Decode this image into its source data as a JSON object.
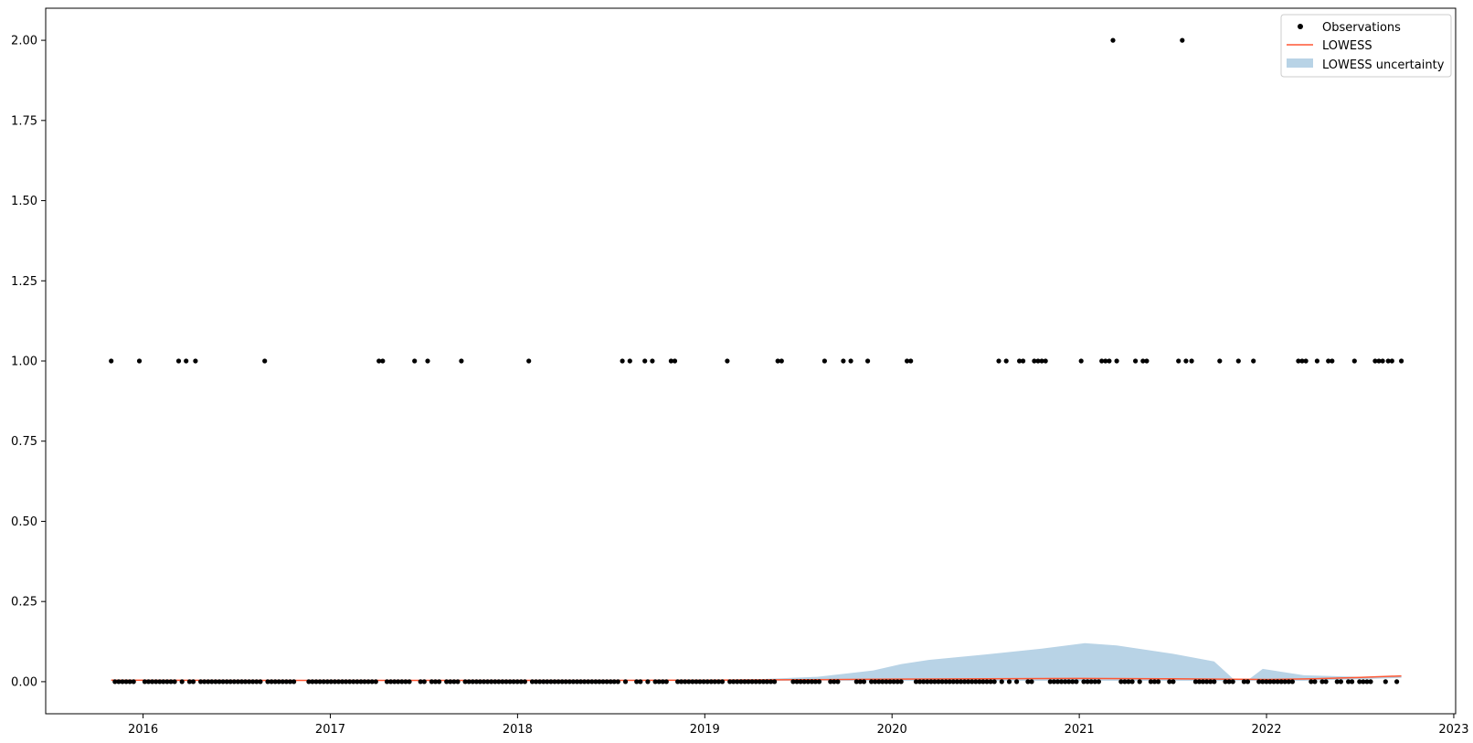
{
  "chart_data": {
    "type": "scatter",
    "title": "",
    "xlabel": "",
    "ylabel": "",
    "xlim": [
      2015.48,
      2023.01
    ],
    "ylim": [
      -0.1,
      2.1
    ],
    "x_ticks": [
      2016,
      2017,
      2018,
      2019,
      2020,
      2021,
      2022,
      2023
    ],
    "x_tick_labels": [
      "2016",
      "2017",
      "2018",
      "2019",
      "2020",
      "2021",
      "2022",
      "2023"
    ],
    "y_ticks": [
      0.0,
      0.25,
      0.5,
      0.75,
      1.0,
      1.25,
      1.5,
      1.75,
      2.0
    ],
    "y_tick_labels": [
      "0.00",
      "0.25",
      "0.50",
      "0.75",
      "1.00",
      "1.25",
      "1.50",
      "1.75",
      "2.00"
    ],
    "grid": false,
    "legend_position": "top-right",
    "legend": {
      "observations": "Observations",
      "lowess": "LOWESS",
      "uncertainty": "LOWESS uncertainty"
    },
    "colors": {
      "observations": "#000000",
      "lowess": "#ff5733",
      "uncertainty": "#b8d3e6"
    },
    "observations_value_1": [
      2015.83,
      2015.98,
      2016.19,
      2016.23,
      2016.28,
      2016.65,
      2017.26,
      2017.28,
      2017.45,
      2017.52,
      2017.7,
      2018.06,
      2018.56,
      2018.6,
      2018.68,
      2018.72,
      2018.82,
      2018.84,
      2019.12,
      2019.39,
      2019.41,
      2019.64,
      2019.74,
      2019.78,
      2019.87,
      2020.08,
      2020.1,
      2020.57,
      2020.61,
      2020.68,
      2020.7,
      2020.76,
      2020.78,
      2020.8,
      2020.82,
      2021.01,
      2021.12,
      2021.14,
      2021.16,
      2021.2,
      2021.3,
      2021.34,
      2021.36,
      2021.53,
      2021.57,
      2021.6,
      2021.75,
      2021.85,
      2021.93,
      2022.17,
      2022.19,
      2022.21,
      2022.27,
      2022.33,
      2022.35,
      2022.47,
      2022.58,
      2022.6,
      2022.62,
      2022.65,
      2022.67,
      2022.72
    ],
    "observations_value_2": [
      2021.18,
      2021.55
    ],
    "observations_value_0_range": [
      2015.85,
      2022.71
    ],
    "observations_value_0_gaps": [
      [
        2016.82,
        2016.87
      ],
      [
        2017.59,
        2017.62
      ],
      [
        2018.58,
        2018.62
      ],
      [
        2019.43,
        2019.46
      ],
      [
        2020.63,
        2020.66
      ],
      [
        2021.44,
        2021.47
      ],
      [
        2021.9,
        2021.92
      ],
      [
        2022.4,
        2022.42
      ]
    ],
    "lowess": {
      "x": [
        2015.83,
        2016.5,
        2017.0,
        2017.5,
        2018.0,
        2018.5,
        2019.0,
        2019.5,
        2020.0,
        2020.5,
        2021.0,
        2021.5,
        2021.75,
        2022.0,
        2022.25,
        2022.5,
        2022.72
      ],
      "y": [
        0.005,
        0.004,
        0.004,
        0.004,
        0.004,
        0.004,
        0.005,
        0.006,
        0.008,
        0.009,
        0.01,
        0.009,
        0.008,
        0.007,
        0.009,
        0.013,
        0.018
      ]
    },
    "uncertainty": {
      "x": [
        2015.83,
        2019.0,
        2019.3,
        2019.6,
        2019.9,
        2020.05,
        2020.2,
        2020.5,
        2020.8,
        2021.03,
        2021.2,
        2021.5,
        2021.72,
        2021.83,
        2021.9,
        2021.98,
        2022.2,
        2022.5,
        2022.72
      ],
      "upper": [
        0.005,
        0.006,
        0.008,
        0.015,
        0.035,
        0.055,
        0.068,
        0.085,
        0.103,
        0.12,
        0.113,
        0.087,
        0.063,
        0.005,
        0.005,
        0.04,
        0.02,
        0.015,
        0.018
      ],
      "lower": [
        0.003,
        0.003,
        0.003,
        0.003,
        0.003,
        0.003,
        0.003,
        0.003,
        0.003,
        0.003,
        0.003,
        0.003,
        0.003,
        0.003,
        0.003,
        0.003,
        0.003,
        0.008,
        0.012
      ]
    }
  }
}
